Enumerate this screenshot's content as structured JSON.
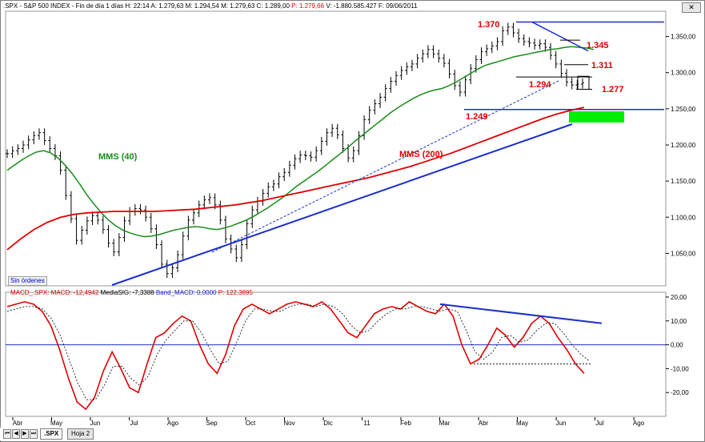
{
  "header": {
    "symbol": ".SPX",
    "name": "S&P 500 INDEX",
    "period": "Fin de día 1 días",
    "high": "H: 22:14",
    "high2": "A: 1.279,63",
    "max": "M: 1.294,54",
    "min": "M: 1.279,63",
    "close": "C: 1.289,00",
    "p": "P: 1.279,66",
    "vol": "V: -1.880.585.427",
    "date": "F: 09/06/2011"
  },
  "orders_button": "Sin órdenes",
  "macd_header": {
    "part1": "MACD_.SPX: MACD: -12,4942",
    "part2": "MediaSIG: -7,3388",
    "part3": "Band_MACD: 0,0000",
    "part4": "P: 122,3895"
  },
  "tabs": {
    "sheet1": ".SPX",
    "sheet2": "Hoja 2"
  },
  "colors": {
    "price": "#000000",
    "mms40": "#1a8c1a",
    "mms200": "#e00000",
    "trend": "#1c30c8",
    "macd": "#e00000",
    "signal": "#000000",
    "highlight": "#00ee00",
    "label_red": "#e00000"
  },
  "chart_data": [
    {
      "type": "line",
      "title": "",
      "x_labels": [
        "Abr",
        "May",
        "Jun",
        "Jul",
        "Ago",
        "Sep",
        "Oct",
        "Nov",
        "Dic",
        "11",
        "Feb",
        "Mar",
        "Abr",
        "May",
        "Jun",
        "Jul",
        "Ago"
      ],
      "yticks": [
        "1.350,00",
        "1.300,00",
        "1.250,00",
        "1.200,00",
        "1.150,00",
        "1.100,00",
        "1.050,00"
      ],
      "ylim": [
        1005,
        1385
      ],
      "series": [
        {
          "name": "S&P 500",
          "values": [
            1188,
            1192,
            1195,
            1200,
            1207,
            1213,
            1217,
            1206,
            1195,
            1185,
            1165,
            1130,
            1098,
            1068,
            1082,
            1095,
            1102,
            1096,
            1083,
            1064,
            1052,
            1072,
            1095,
            1108,
            1112,
            1110,
            1100,
            1084,
            1062,
            1035,
            1022,
            1030,
            1048,
            1074,
            1096,
            1106,
            1117,
            1124,
            1127,
            1117,
            1096,
            1070,
            1056,
            1044,
            1062,
            1091,
            1110,
            1122,
            1133,
            1142,
            1146,
            1156,
            1162,
            1172,
            1181,
            1186,
            1185,
            1183,
            1192,
            1205,
            1217,
            1223,
            1214,
            1195,
            1182,
            1192,
            1213,
            1235,
            1248,
            1257,
            1266,
            1278,
            1288,
            1296,
            1303,
            1308,
            1312,
            1320,
            1326,
            1332,
            1326,
            1320,
            1313,
            1298,
            1282,
            1273,
            1290,
            1306,
            1318,
            1329,
            1333,
            1337,
            1343,
            1358,
            1363,
            1355,
            1347,
            1343,
            1341,
            1338,
            1340,
            1335,
            1324,
            1312,
            1299,
            1287,
            1283,
            1284,
            1286
          ]
        },
        {
          "name": "MMS (40)",
          "values": [
            1165,
            1172,
            1179,
            1185,
            1190,
            1192,
            1189,
            1182,
            1172,
            1160,
            1146,
            1131,
            1118,
            1106,
            1096,
            1088,
            1082,
            1078,
            1075,
            1073,
            1074,
            1076,
            1079,
            1082,
            1084,
            1086,
            1087,
            1086,
            1084,
            1083,
            1085,
            1088,
            1092,
            1096,
            1101,
            1107,
            1113,
            1120,
            1127,
            1135,
            1143,
            1150,
            1157,
            1164,
            1172,
            1180,
            1188,
            1196,
            1205,
            1213,
            1221,
            1229,
            1237,
            1245,
            1252,
            1258,
            1264,
            1269,
            1273,
            1276,
            1278,
            1282,
            1287,
            1293,
            1299,
            1305,
            1310,
            1313,
            1316,
            1319,
            1322,
            1324,
            1326,
            1328,
            1330,
            1332,
            1333,
            1335,
            1336,
            1335,
            1334,
            1332
          ]
        },
        {
          "name": "MMS (200)",
          "values": [
            1055,
            1070,
            1083,
            1093,
            1100,
            1104,
            1106,
            1107,
            1108,
            1108,
            1108,
            1108,
            1109,
            1110,
            1111,
            1113,
            1115,
            1117,
            1120,
            1123,
            1127,
            1131,
            1135,
            1139,
            1143,
            1147,
            1151,
            1155,
            1160,
            1165,
            1170,
            1176,
            1182,
            1188,
            1195,
            1202,
            1209,
            1216,
            1223,
            1230,
            1237,
            1243,
            1248,
            1252
          ]
        }
      ],
      "annotations": [
        {
          "text": "1.370",
          "value": 1370
        },
        {
          "text": "1.345",
          "value": 1345
        },
        {
          "text": "1.311",
          "value": 1311
        },
        {
          "text": "1.294",
          "value": 1294
        },
        {
          "text": "1.277",
          "value": 1277
        },
        {
          "text": "1.249",
          "value": 1249
        },
        {
          "text": "MMS (40)"
        },
        {
          "text": "MMS (200)"
        }
      ]
    },
    {
      "type": "line",
      "title": "",
      "yticks": [
        "20,00",
        "10,00",
        "0,00",
        "-10,00",
        "-20,00"
      ],
      "ylim": [
        -30,
        22
      ],
      "series": [
        {
          "name": "MACD",
          "values": [
            16,
            17,
            18,
            17,
            14,
            8,
            -2,
            -14,
            -24,
            -27,
            -22,
            -11,
            -3,
            -10,
            -18,
            -20,
            -8,
            3,
            5,
            9,
            12,
            10,
            0,
            -8,
            -12,
            -4,
            8,
            15,
            17,
            15,
            13,
            15,
            17,
            18,
            17,
            16,
            18,
            15,
            10,
            5,
            3,
            8,
            13,
            15,
            16,
            15,
            18,
            16,
            14,
            13,
            17,
            12,
            0,
            -8,
            -6,
            0,
            7,
            4,
            -1,
            3,
            9,
            12,
            9,
            3,
            -2,
            -8,
            -12
          ]
        },
        {
          "name": "MediaSIG",
          "values": [
            14,
            15,
            16,
            16,
            15,
            11,
            4,
            -6,
            -16,
            -23,
            -23,
            -17,
            -9,
            -9,
            -14,
            -17,
            -13,
            -4,
            2,
            6,
            10,
            10,
            5,
            -2,
            -8,
            -7,
            1,
            10,
            15,
            15,
            14,
            14,
            16,
            17,
            17,
            16,
            17,
            16,
            13,
            8,
            5,
            6,
            10,
            13,
            15,
            15,
            16,
            16,
            15,
            14,
            15,
            14,
            6,
            -3,
            -6,
            -3,
            3,
            4,
            1,
            2,
            6,
            9,
            9,
            5,
            0,
            -4,
            -7
          ]
        }
      ]
    }
  ]
}
